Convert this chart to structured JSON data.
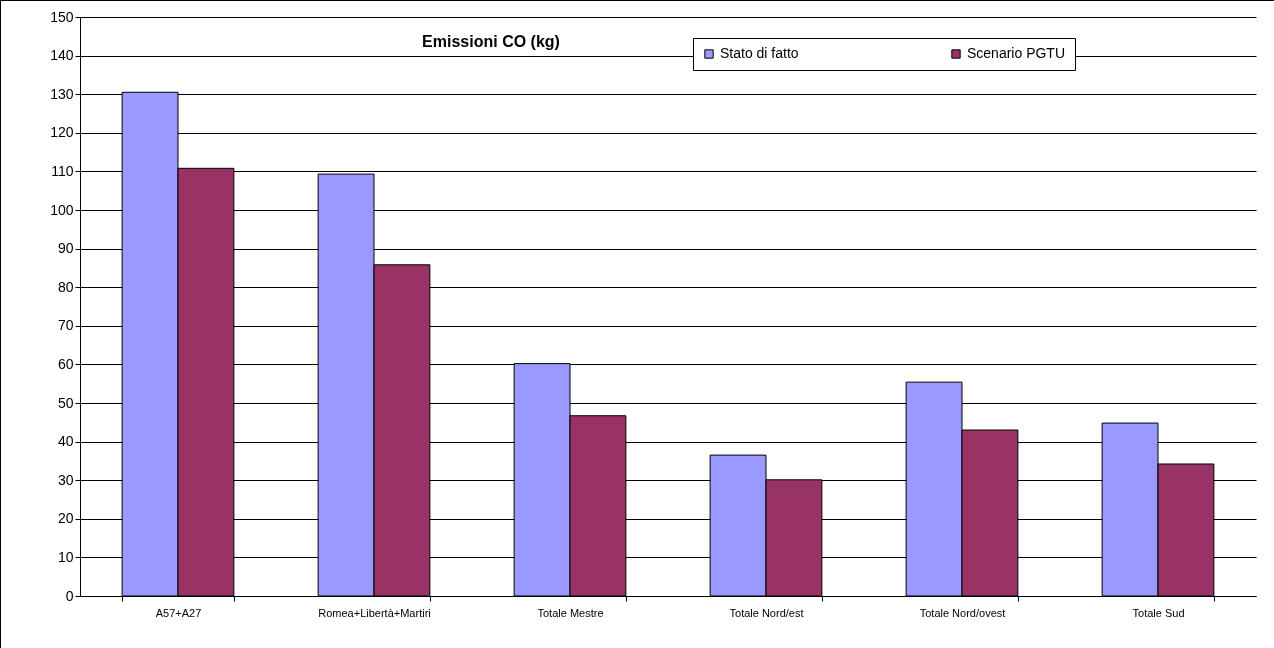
{
  "chart_data": {
    "type": "bar",
    "title": "Emissioni CO (kg)",
    "categories": [
      "A57+A27",
      "Romea+Libertà+Martiri",
      "Totale Mestre",
      "Totale Nord/est",
      "Totale Nord/ovest",
      "Totale Sud"
    ],
    "series": [
      {
        "name": "Stato di fatto",
        "color": "#9999ff",
        "values": [
          130.5,
          109.3,
          60.2,
          36.5,
          55.4,
          44.8
        ]
      },
      {
        "name": "Scenario PGTU",
        "color": "#993366",
        "values": [
          110.8,
          85.8,
          46.7,
          30.1,
          43.0,
          34.2
        ]
      }
    ],
    "ylim": [
      0,
      150
    ],
    "yticks": [
      0,
      10,
      20,
      30,
      40,
      50,
      60,
      70,
      80,
      90,
      100,
      110,
      120,
      130,
      140,
      150
    ],
    "grid": "y",
    "legend": "top right"
  }
}
